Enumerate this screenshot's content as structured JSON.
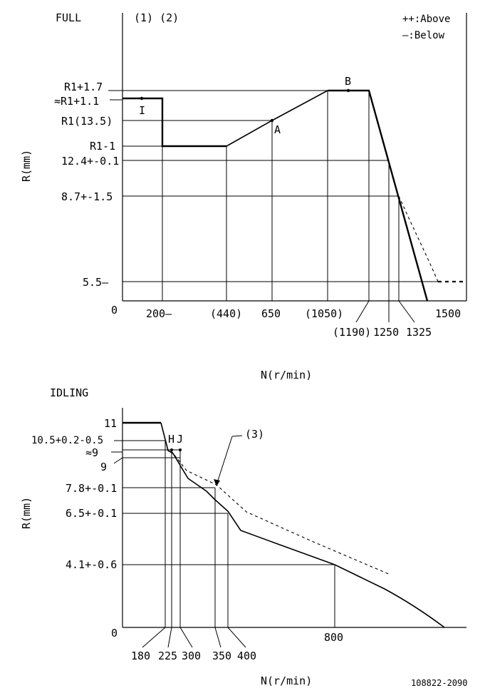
{
  "full_panel": {
    "title": "FULL",
    "notes": "(1) (2)",
    "legend_above": "++:Above",
    "legend_below": "—:Below",
    "y_axis_label": "R(mm)",
    "x_axis_label": "N(r/min)",
    "origin": "0",
    "y_ticks": [
      "R1+1.7",
      "≈R1+1.1",
      "R1(13.5)",
      "R1-1",
      "12.4+-0.1",
      "8.7+-1.5",
      "5.5—"
    ],
    "x_ticks_top_row": [
      "200—",
      "(440)",
      "650",
      "(1050)",
      "1500"
    ],
    "x_ticks_bottom_row": [
      "(1190)",
      "1250",
      "1325"
    ],
    "markers": [
      "A",
      "B",
      "I"
    ]
  },
  "idling_panel": {
    "title": "IDLING",
    "y_axis_label": "R(mm)",
    "x_axis_label": "N(r/min)",
    "origin": "0",
    "y_ticks": [
      "11",
      "10.5+0.2-0.5",
      "≈9",
      "9",
      "7.8+-0.1",
      "6.5+-0.1",
      "4.1+-0.6"
    ],
    "x_ticks": [
      "180",
      "225",
      "300",
      "350",
      "400",
      "800"
    ],
    "markers": [
      "H",
      "J"
    ],
    "note": "(3)"
  },
  "doc_code": "108822-2090"
}
